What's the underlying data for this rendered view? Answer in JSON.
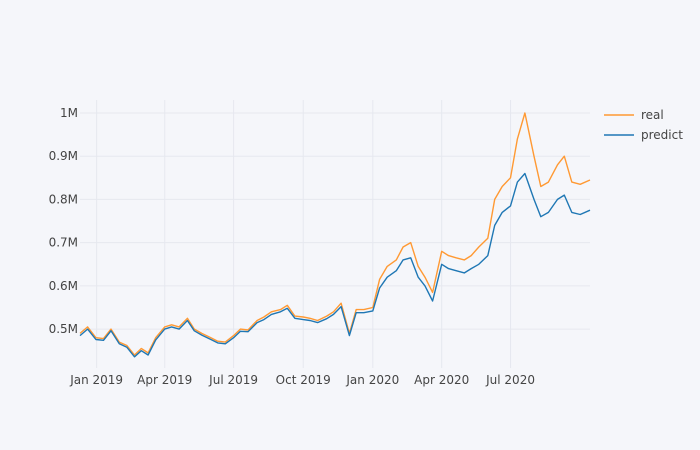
{
  "chart_data": {
    "type": "line",
    "title": "",
    "xlabel": "",
    "ylabel": "",
    "x_range": [
      "2018-12-10",
      "2020-10-14"
    ],
    "y_range": [
      410000,
      1030000
    ],
    "grid": true,
    "legend_placement": "top-right",
    "x_ticks": [
      {
        "date": "2019-01-01",
        "label": "Jan 2019"
      },
      {
        "date": "2019-04-01",
        "label": "Apr 2019"
      },
      {
        "date": "2019-07-01",
        "label": "Jul 2019"
      },
      {
        "date": "2019-10-01",
        "label": "Oct 2019"
      },
      {
        "date": "2020-01-01",
        "label": "Jan 2020"
      },
      {
        "date": "2020-04-01",
        "label": "Apr 2020"
      },
      {
        "date": "2020-07-01",
        "label": "Jul 2020"
      }
    ],
    "y_ticks": [
      {
        "value": 500000,
        "label": "0.5M"
      },
      {
        "value": 600000,
        "label": "0.6M"
      },
      {
        "value": 700000,
        "label": "0.7M"
      },
      {
        "value": 800000,
        "label": "0.8M"
      },
      {
        "value": 900000,
        "label": "0.9M"
      },
      {
        "value": 1000000,
        "label": "1M"
      }
    ],
    "series": [
      {
        "name": "real",
        "color": "#ff9933",
        "x": [
          "2018-12-10",
          "2018-12-20",
          "2018-12-31",
          "2019-01-10",
          "2019-01-20",
          "2019-01-31",
          "2019-02-10",
          "2019-02-20",
          "2019-03-01",
          "2019-03-10",
          "2019-03-20",
          "2019-04-01",
          "2019-04-10",
          "2019-04-20",
          "2019-05-01",
          "2019-05-10",
          "2019-05-20",
          "2019-06-01",
          "2019-06-10",
          "2019-06-20",
          "2019-07-01",
          "2019-07-10",
          "2019-07-20",
          "2019-08-01",
          "2019-08-10",
          "2019-08-20",
          "2019-09-01",
          "2019-09-10",
          "2019-09-20",
          "2019-10-01",
          "2019-10-10",
          "2019-10-20",
          "2019-11-01",
          "2019-11-10",
          "2019-11-20",
          "2019-12-01",
          "2019-12-10",
          "2019-12-20",
          "2020-01-01",
          "2020-01-10",
          "2020-01-20",
          "2020-02-01",
          "2020-02-10",
          "2020-02-20",
          "2020-03-01",
          "2020-03-10",
          "2020-03-20",
          "2020-04-01",
          "2020-04-10",
          "2020-04-20",
          "2020-05-01",
          "2020-05-10",
          "2020-05-20",
          "2020-06-01",
          "2020-06-10",
          "2020-06-20",
          "2020-07-01",
          "2020-07-10",
          "2020-07-20",
          "2020-08-01",
          "2020-08-10",
          "2020-08-20",
          "2020-09-01",
          "2020-09-10",
          "2020-09-20",
          "2020-10-01",
          "2020-10-14"
        ],
        "y": [
          490000,
          505000,
          480000,
          478000,
          500000,
          470000,
          462000,
          440000,
          455000,
          445000,
          480000,
          505000,
          510000,
          505000,
          525000,
          500000,
          490000,
          480000,
          472000,
          470000,
          485000,
          500000,
          498000,
          520000,
          528000,
          540000,
          545000,
          555000,
          530000,
          528000,
          525000,
          520000,
          530000,
          540000,
          560000,
          490000,
          545000,
          545000,
          550000,
          615000,
          645000,
          660000,
          690000,
          700000,
          645000,
          620000,
          585000,
          680000,
          670000,
          665000,
          660000,
          670000,
          690000,
          710000,
          800000,
          830000,
          850000,
          940000,
          1000000,
          900000,
          830000,
          840000,
          880000,
          900000,
          840000,
          835000,
          845000
        ]
      },
      {
        "name": "predict",
        "color": "#1f77b4",
        "x": [
          "2018-12-10",
          "2018-12-20",
          "2018-12-31",
          "2019-01-10",
          "2019-01-20",
          "2019-01-31",
          "2019-02-10",
          "2019-02-20",
          "2019-03-01",
          "2019-03-10",
          "2019-03-20",
          "2019-04-01",
          "2019-04-10",
          "2019-04-20",
          "2019-05-01",
          "2019-05-10",
          "2019-05-20",
          "2019-06-01",
          "2019-06-10",
          "2019-06-20",
          "2019-07-01",
          "2019-07-10",
          "2019-07-20",
          "2019-08-01",
          "2019-08-10",
          "2019-08-20",
          "2019-09-01",
          "2019-09-10",
          "2019-09-20",
          "2019-10-01",
          "2019-10-10",
          "2019-10-20",
          "2019-11-01",
          "2019-11-10",
          "2019-11-20",
          "2019-12-01",
          "2019-12-10",
          "2019-12-20",
          "2020-01-01",
          "2020-01-10",
          "2020-01-20",
          "2020-02-01",
          "2020-02-10",
          "2020-02-20",
          "2020-03-01",
          "2020-03-10",
          "2020-03-20",
          "2020-04-01",
          "2020-04-10",
          "2020-04-20",
          "2020-05-01",
          "2020-05-10",
          "2020-05-20",
          "2020-06-01",
          "2020-06-10",
          "2020-06-20",
          "2020-07-01",
          "2020-07-10",
          "2020-07-20",
          "2020-08-01",
          "2020-08-10",
          "2020-08-20",
          "2020-09-01",
          "2020-09-10",
          "2020-09-20",
          "2020-10-01",
          "2020-10-14"
        ],
        "y": [
          485000,
          500000,
          476000,
          474000,
          496000,
          466000,
          458000,
          436000,
          450000,
          440000,
          475000,
          500000,
          505000,
          500000,
          520000,
          496000,
          486000,
          476000,
          468000,
          466000,
          480000,
          495000,
          494000,
          515000,
          522000,
          534000,
          540000,
          548000,
          525000,
          522000,
          520000,
          515000,
          524000,
          534000,
          552000,
          485000,
          538000,
          538000,
          542000,
          595000,
          620000,
          635000,
          660000,
          665000,
          620000,
          600000,
          565000,
          650000,
          640000,
          635000,
          630000,
          640000,
          650000,
          670000,
          740000,
          770000,
          785000,
          840000,
          860000,
          800000,
          760000,
          770000,
          800000,
          810000,
          770000,
          765000,
          775000
        ]
      }
    ]
  }
}
